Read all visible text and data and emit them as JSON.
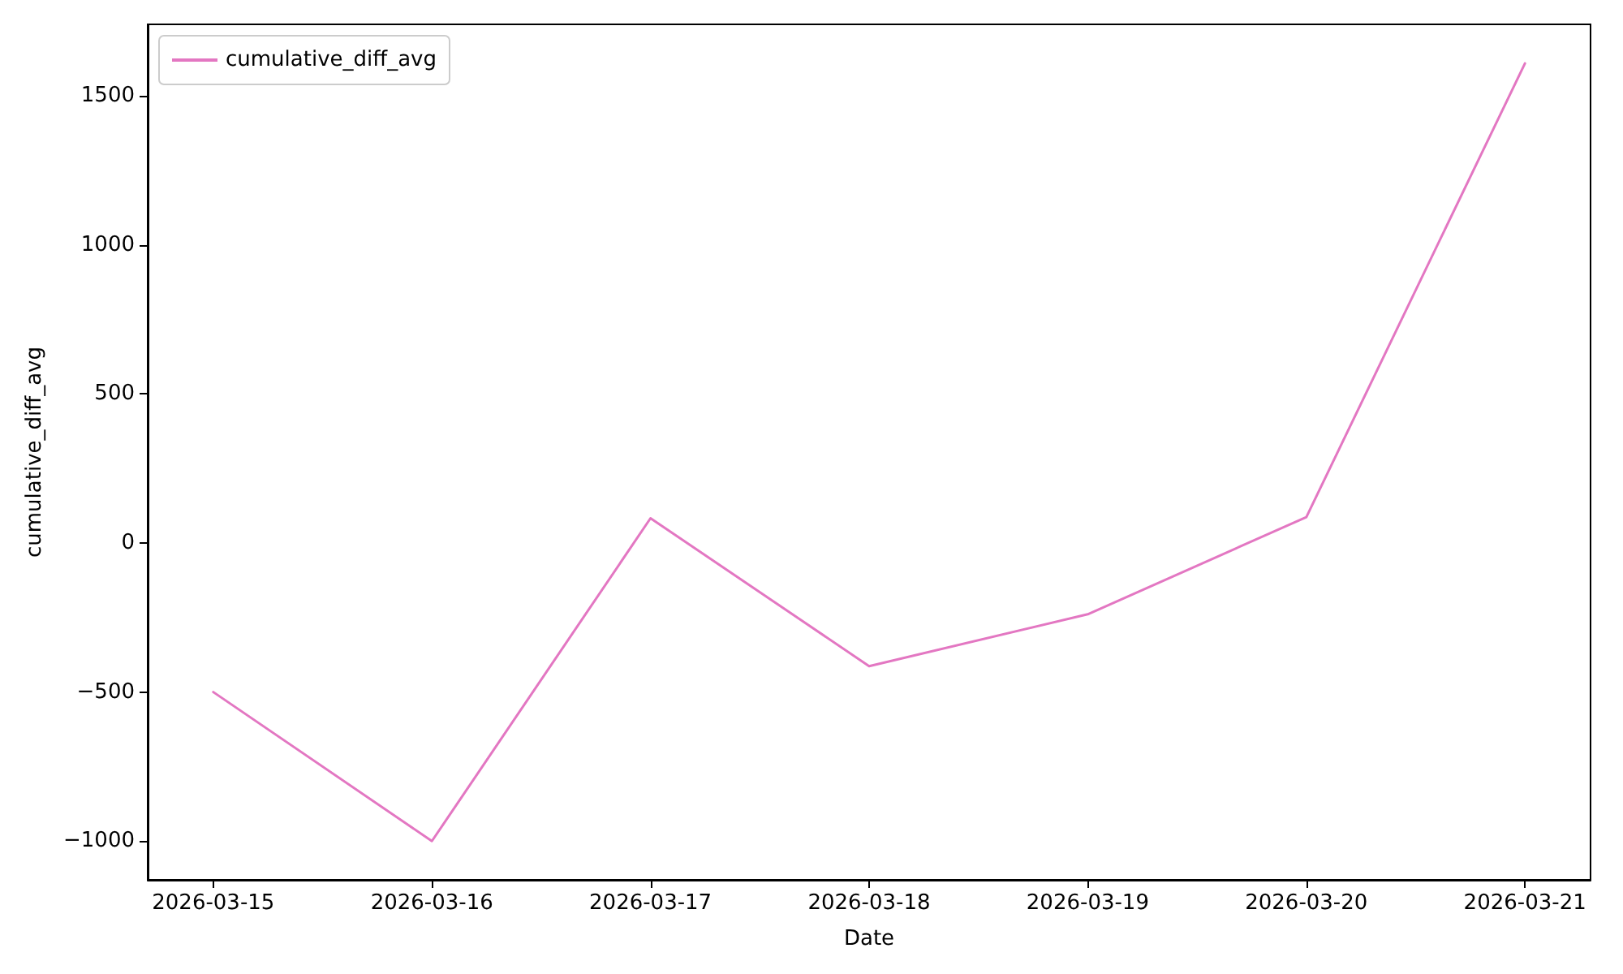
{
  "chart_data": {
    "type": "line",
    "xlabel": "Date",
    "ylabel": "cumulative_diff_avg",
    "x": [
      "2026-03-15",
      "2026-03-16",
      "2026-03-17",
      "2026-03-18",
      "2026-03-19",
      "2026-03-20",
      "2026-03-21"
    ],
    "series": [
      {
        "name": "cumulative_diff_avg",
        "color": "#e377c2",
        "values": [
          -500,
          -1000,
          83,
          -413,
          -239,
          87,
          1609
        ]
      }
    ],
    "xlim": [
      "2026-03-14T16:48",
      "2026-03-21T07:12"
    ],
    "xticks": [
      "2026-03-15",
      "2026-03-16",
      "2026-03-17",
      "2026-03-18",
      "2026-03-19",
      "2026-03-20",
      "2026-03-21"
    ],
    "ylim": [
      -1130,
      1740
    ],
    "yticks": [
      -1000,
      -500,
      0,
      500,
      1000,
      1500
    ],
    "grid": false,
    "legend": "top left",
    "marker": "none",
    "line_style": "solid"
  }
}
